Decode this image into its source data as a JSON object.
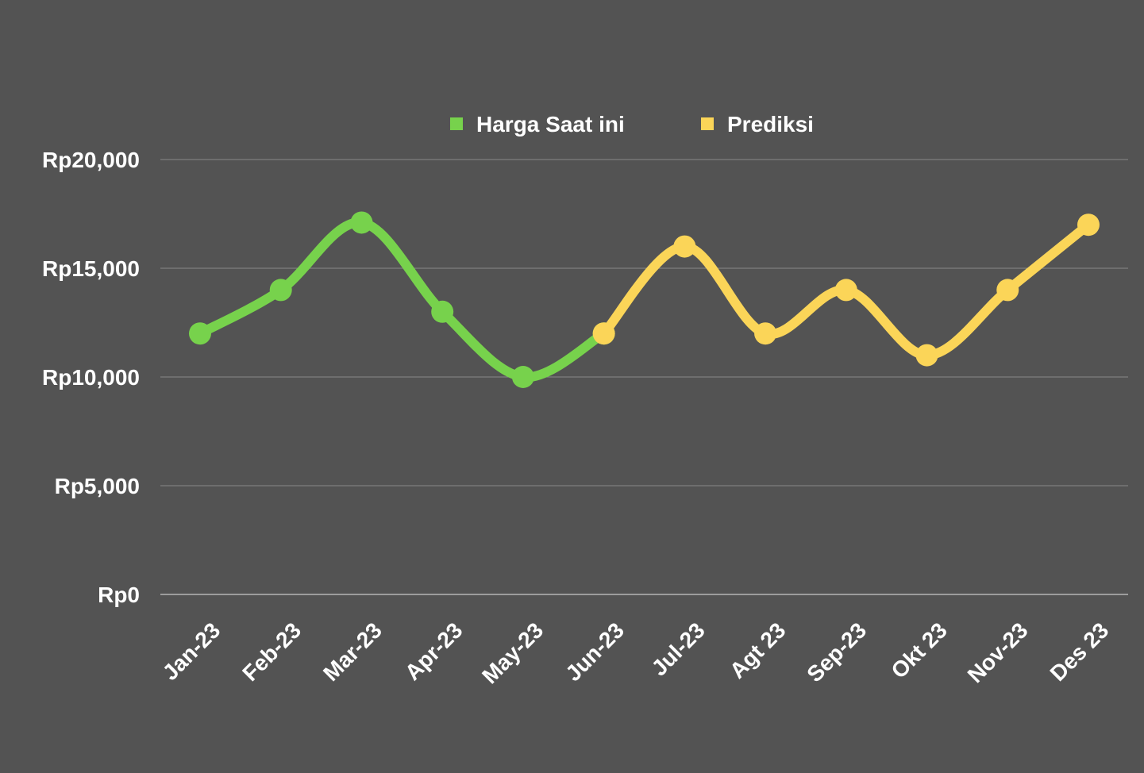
{
  "chart_data": {
    "type": "line",
    "title": "",
    "xlabel": "",
    "ylabel": "",
    "categories": [
      "Jan-23",
      "Feb-23",
      "Mar-23",
      "Apr-23",
      "May-23",
      "Jun-23",
      "Jul-23",
      "Agt 23",
      "Sep-23",
      "Okt 23",
      "Nov-23",
      "Des 23"
    ],
    "series": [
      {
        "name": "Harga Saat ini",
        "color": "#77d24c",
        "values": [
          12000,
          14000,
          17100,
          13000,
          10000,
          12000,
          null,
          null,
          null,
          null,
          null,
          null
        ]
      },
      {
        "name": "Prediksi",
        "color": "#fbd558",
        "values": [
          null,
          null,
          null,
          null,
          null,
          12000,
          16000,
          12000,
          14000,
          11000,
          14000,
          17000
        ]
      }
    ],
    "ylim": [
      0,
      20000
    ],
    "y_ticks": [
      0,
      5000,
      10000,
      15000,
      20000
    ],
    "y_tick_labels": [
      "Rp0",
      "Rp5,000",
      "Rp10,000",
      "Rp15,000",
      "Rp20,000"
    ],
    "grid": true,
    "legend_position": "top-center",
    "background": "#535353",
    "gridline_color": "#8a8a8a",
    "text_color": "#ffffff"
  }
}
